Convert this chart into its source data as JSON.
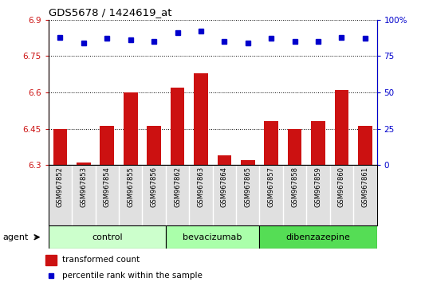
{
  "title": "GDS5678 / 1424619_at",
  "samples": [
    "GSM967852",
    "GSM967853",
    "GSM967854",
    "GSM967855",
    "GSM967856",
    "GSM967862",
    "GSM967863",
    "GSM967864",
    "GSM967865",
    "GSM967857",
    "GSM967858",
    "GSM967859",
    "GSM967860",
    "GSM967861"
  ],
  "bar_values": [
    6.45,
    6.31,
    6.46,
    6.6,
    6.46,
    6.62,
    6.68,
    6.34,
    6.32,
    6.48,
    6.45,
    6.48,
    6.61,
    6.46
  ],
  "percentile_values": [
    88,
    84,
    87,
    86,
    85,
    91,
    92,
    85,
    84,
    87,
    85,
    85,
    88,
    87
  ],
  "bar_color": "#cc1111",
  "dot_color": "#0000cc",
  "ylim_left": [
    6.3,
    6.9
  ],
  "ylim_right": [
    0,
    100
  ],
  "yticks_left": [
    6.3,
    6.45,
    6.6,
    6.75,
    6.9
  ],
  "ytick_labels_left": [
    "6.3",
    "6.45",
    "6.6",
    "6.75",
    "6.9"
  ],
  "yticks_right": [
    0,
    25,
    50,
    75,
    100
  ],
  "ytick_labels_right": [
    "0",
    "25",
    "50",
    "75",
    "100%"
  ],
  "groups": [
    {
      "label": "control",
      "start": 0,
      "end": 5,
      "color": "#ccffcc"
    },
    {
      "label": "bevacizumab",
      "start": 5,
      "end": 9,
      "color": "#aaffaa"
    },
    {
      "label": "dibenzazepine",
      "start": 9,
      "end": 14,
      "color": "#55dd55"
    }
  ],
  "agent_label": "agent",
  "legend_bar_label": "transformed count",
  "legend_dot_label": "percentile rank within the sample",
  "bar_bottom": 6.3
}
